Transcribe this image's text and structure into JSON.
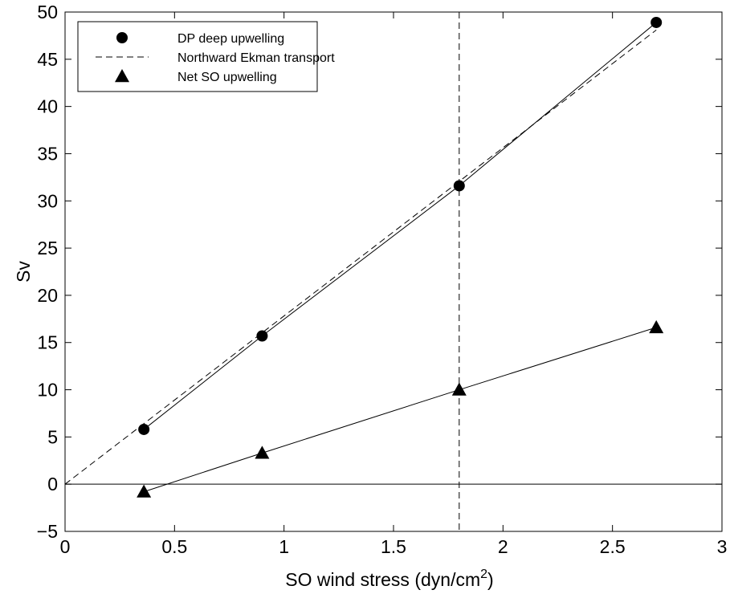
{
  "chart_data": {
    "type": "line",
    "xlabel": "SO wind stress (dyn/cm",
    "xlabel_superscript": "2",
    "xlabel_suffix": ")",
    "ylabel": "Sv",
    "xlim": [
      0,
      3
    ],
    "ylim": [
      -5,
      50
    ],
    "x_ticks": [
      0,
      0.5,
      1,
      1.5,
      2,
      2.5,
      3
    ],
    "x_tick_labels": [
      "0",
      "0.5",
      "1",
      "1.5",
      "2",
      "2.5",
      "3"
    ],
    "y_ticks": [
      -5,
      0,
      5,
      10,
      15,
      20,
      25,
      30,
      35,
      40,
      45,
      50
    ],
    "y_tick_labels": [
      "−5",
      "0",
      "5",
      "10",
      "15",
      "20",
      "25",
      "30",
      "35",
      "40",
      "45",
      "50"
    ],
    "grid": false,
    "legend_position": "top-left",
    "series": [
      {
        "name": "DP deep upwelling",
        "marker": "circle",
        "line": "solid",
        "x": [
          0.36,
          0.9,
          1.8,
          2.7
        ],
        "y": [
          5.8,
          15.7,
          31.6,
          48.9
        ]
      },
      {
        "name": "Northward Ekman transport",
        "marker": "none",
        "line": "dashed",
        "x": [
          0,
          2.7
        ],
        "y": [
          0,
          48.1
        ]
      },
      {
        "name": "Net SO upwelling",
        "marker": "triangle",
        "line": "solid",
        "x": [
          0.36,
          0.9,
          1.8,
          2.7
        ],
        "y": [
          -0.8,
          3.3,
          10.0,
          16.6
        ]
      }
    ],
    "reference_lines": [
      {
        "orientation": "horizontal",
        "value": 0,
        "style": "solid"
      },
      {
        "orientation": "vertical",
        "value": 1.8,
        "style": "dashed"
      }
    ],
    "colors": {
      "ink": "#000000",
      "background": "#ffffff"
    }
  }
}
